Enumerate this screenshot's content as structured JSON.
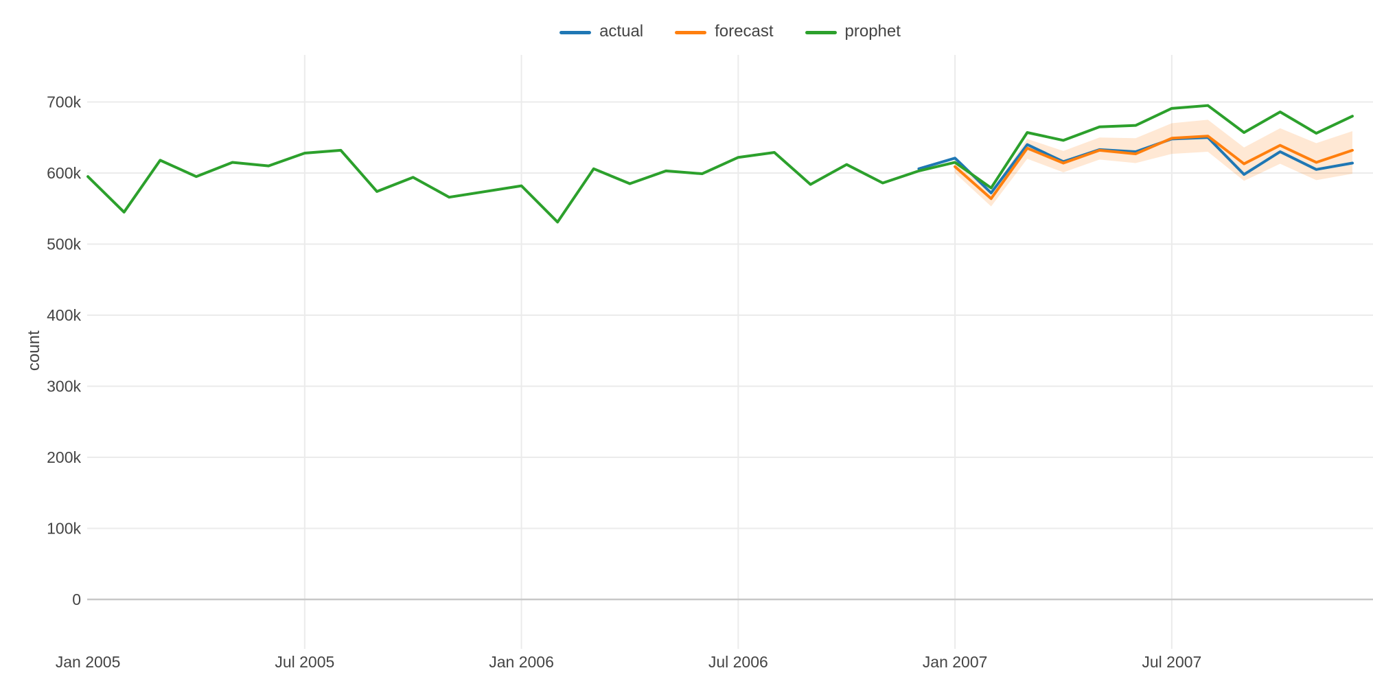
{
  "legend": {
    "items": [
      {
        "label": "actual",
        "color": "#1f77b4"
      },
      {
        "label": "forecast",
        "color": "#ff7f0e"
      },
      {
        "label": "prophet",
        "color": "#2ca02c"
      }
    ]
  },
  "chart_data": {
    "type": "line",
    "title": "",
    "xlabel": "",
    "ylabel": "count",
    "background": "#ffffff",
    "text_color": "#444444",
    "grid_color": "#ebebeb",
    "zeroline_color": "#c8c8c8",
    "band_color": "rgba(255,127,14,0.18)",
    "legend_position": "top-center",
    "x": [
      "2005-01",
      "2005-02",
      "2005-03",
      "2005-04",
      "2005-05",
      "2005-06",
      "2005-07",
      "2005-08",
      "2005-09",
      "2005-10",
      "2005-11",
      "2005-12",
      "2006-01",
      "2006-02",
      "2006-03",
      "2006-04",
      "2006-05",
      "2006-06",
      "2006-07",
      "2006-08",
      "2006-09",
      "2006-10",
      "2006-11",
      "2006-12",
      "2007-01",
      "2007-02",
      "2007-03",
      "2007-04",
      "2007-05",
      "2007-06",
      "2007-07",
      "2007-08",
      "2007-09",
      "2007-10",
      "2007-11",
      "2007-12"
    ],
    "series": [
      {
        "name": "actual",
        "color": "#1f77b4",
        "line_width": 4,
        "values": [
          null,
          null,
          null,
          null,
          null,
          null,
          null,
          null,
          null,
          null,
          null,
          null,
          null,
          null,
          null,
          null,
          null,
          null,
          null,
          null,
          null,
          null,
          null,
          606000,
          621000,
          572000,
          640000,
          616000,
          633000,
          630000,
          648000,
          650000,
          598000,
          630000,
          605000,
          614000
        ]
      },
      {
        "name": "forecast",
        "color": "#ff7f0e",
        "line_width": 4,
        "values": [
          null,
          null,
          null,
          null,
          null,
          null,
          null,
          null,
          null,
          null,
          null,
          null,
          null,
          null,
          null,
          null,
          null,
          null,
          null,
          null,
          null,
          null,
          null,
          null,
          609000,
          564000,
          635000,
          614000,
          632000,
          627000,
          649000,
          652000,
          613000,
          639000,
          615000,
          632000
        ]
      },
      {
        "name": "prophet",
        "color": "#2ca02c",
        "line_width": 4,
        "values": [
          595000,
          545000,
          618000,
          595000,
          615000,
          610000,
          628000,
          632000,
          574000,
          594000,
          566000,
          574000,
          582000,
          531000,
          606000,
          585000,
          603000,
          599000,
          622000,
          629000,
          584000,
          612000,
          586000,
          603000,
          615000,
          579000,
          657000,
          646000,
          665000,
          667000,
          691000,
          695000,
          657000,
          686000,
          656000,
          680000
        ]
      }
    ],
    "forecast_band": {
      "belongs_to": "forecast",
      "upper": [
        null,
        null,
        null,
        null,
        null,
        null,
        null,
        null,
        null,
        null,
        null,
        null,
        null,
        null,
        null,
        null,
        null,
        null,
        null,
        null,
        null,
        null,
        null,
        null,
        613000,
        574000,
        648000,
        631000,
        650000,
        649000,
        670000,
        675000,
        636000,
        663000,
        642000,
        659000
      ],
      "lower": [
        null,
        null,
        null,
        null,
        null,
        null,
        null,
        null,
        null,
        null,
        null,
        null,
        null,
        null,
        null,
        null,
        null,
        null,
        null,
        null,
        null,
        null,
        null,
        null,
        600000,
        553000,
        620000,
        601000,
        619000,
        614000,
        627000,
        630000,
        589000,
        613000,
        590000,
        599000
      ]
    },
    "x_axis": {
      "range_months": [
        -0.02,
        35.57
      ],
      "ticks": [
        {
          "label": "Jan 2005",
          "month": 0,
          "grid": false
        },
        {
          "label": "Jul 2005",
          "month": 6,
          "grid": true
        },
        {
          "label": "Jan 2006",
          "month": 12,
          "grid": true
        },
        {
          "label": "Jul 2006",
          "month": 18,
          "grid": true
        },
        {
          "label": "Jan 2007",
          "month": 24,
          "grid": true
        },
        {
          "label": "Jul 2007",
          "month": 30,
          "grid": true
        }
      ]
    },
    "y_axis": {
      "title": "count",
      "range": [
        -69600,
        766200
      ],
      "ticks": [
        {
          "label": "0",
          "value": 0
        },
        {
          "label": "100k",
          "value": 100000
        },
        {
          "label": "200k",
          "value": 200000
        },
        {
          "label": "300k",
          "value": 300000
        },
        {
          "label": "400k",
          "value": 400000
        },
        {
          "label": "500k",
          "value": 500000
        },
        {
          "label": "600k",
          "value": 600000
        },
        {
          "label": "700k",
          "value": 700000
        }
      ],
      "zeroline_value": 0
    }
  }
}
